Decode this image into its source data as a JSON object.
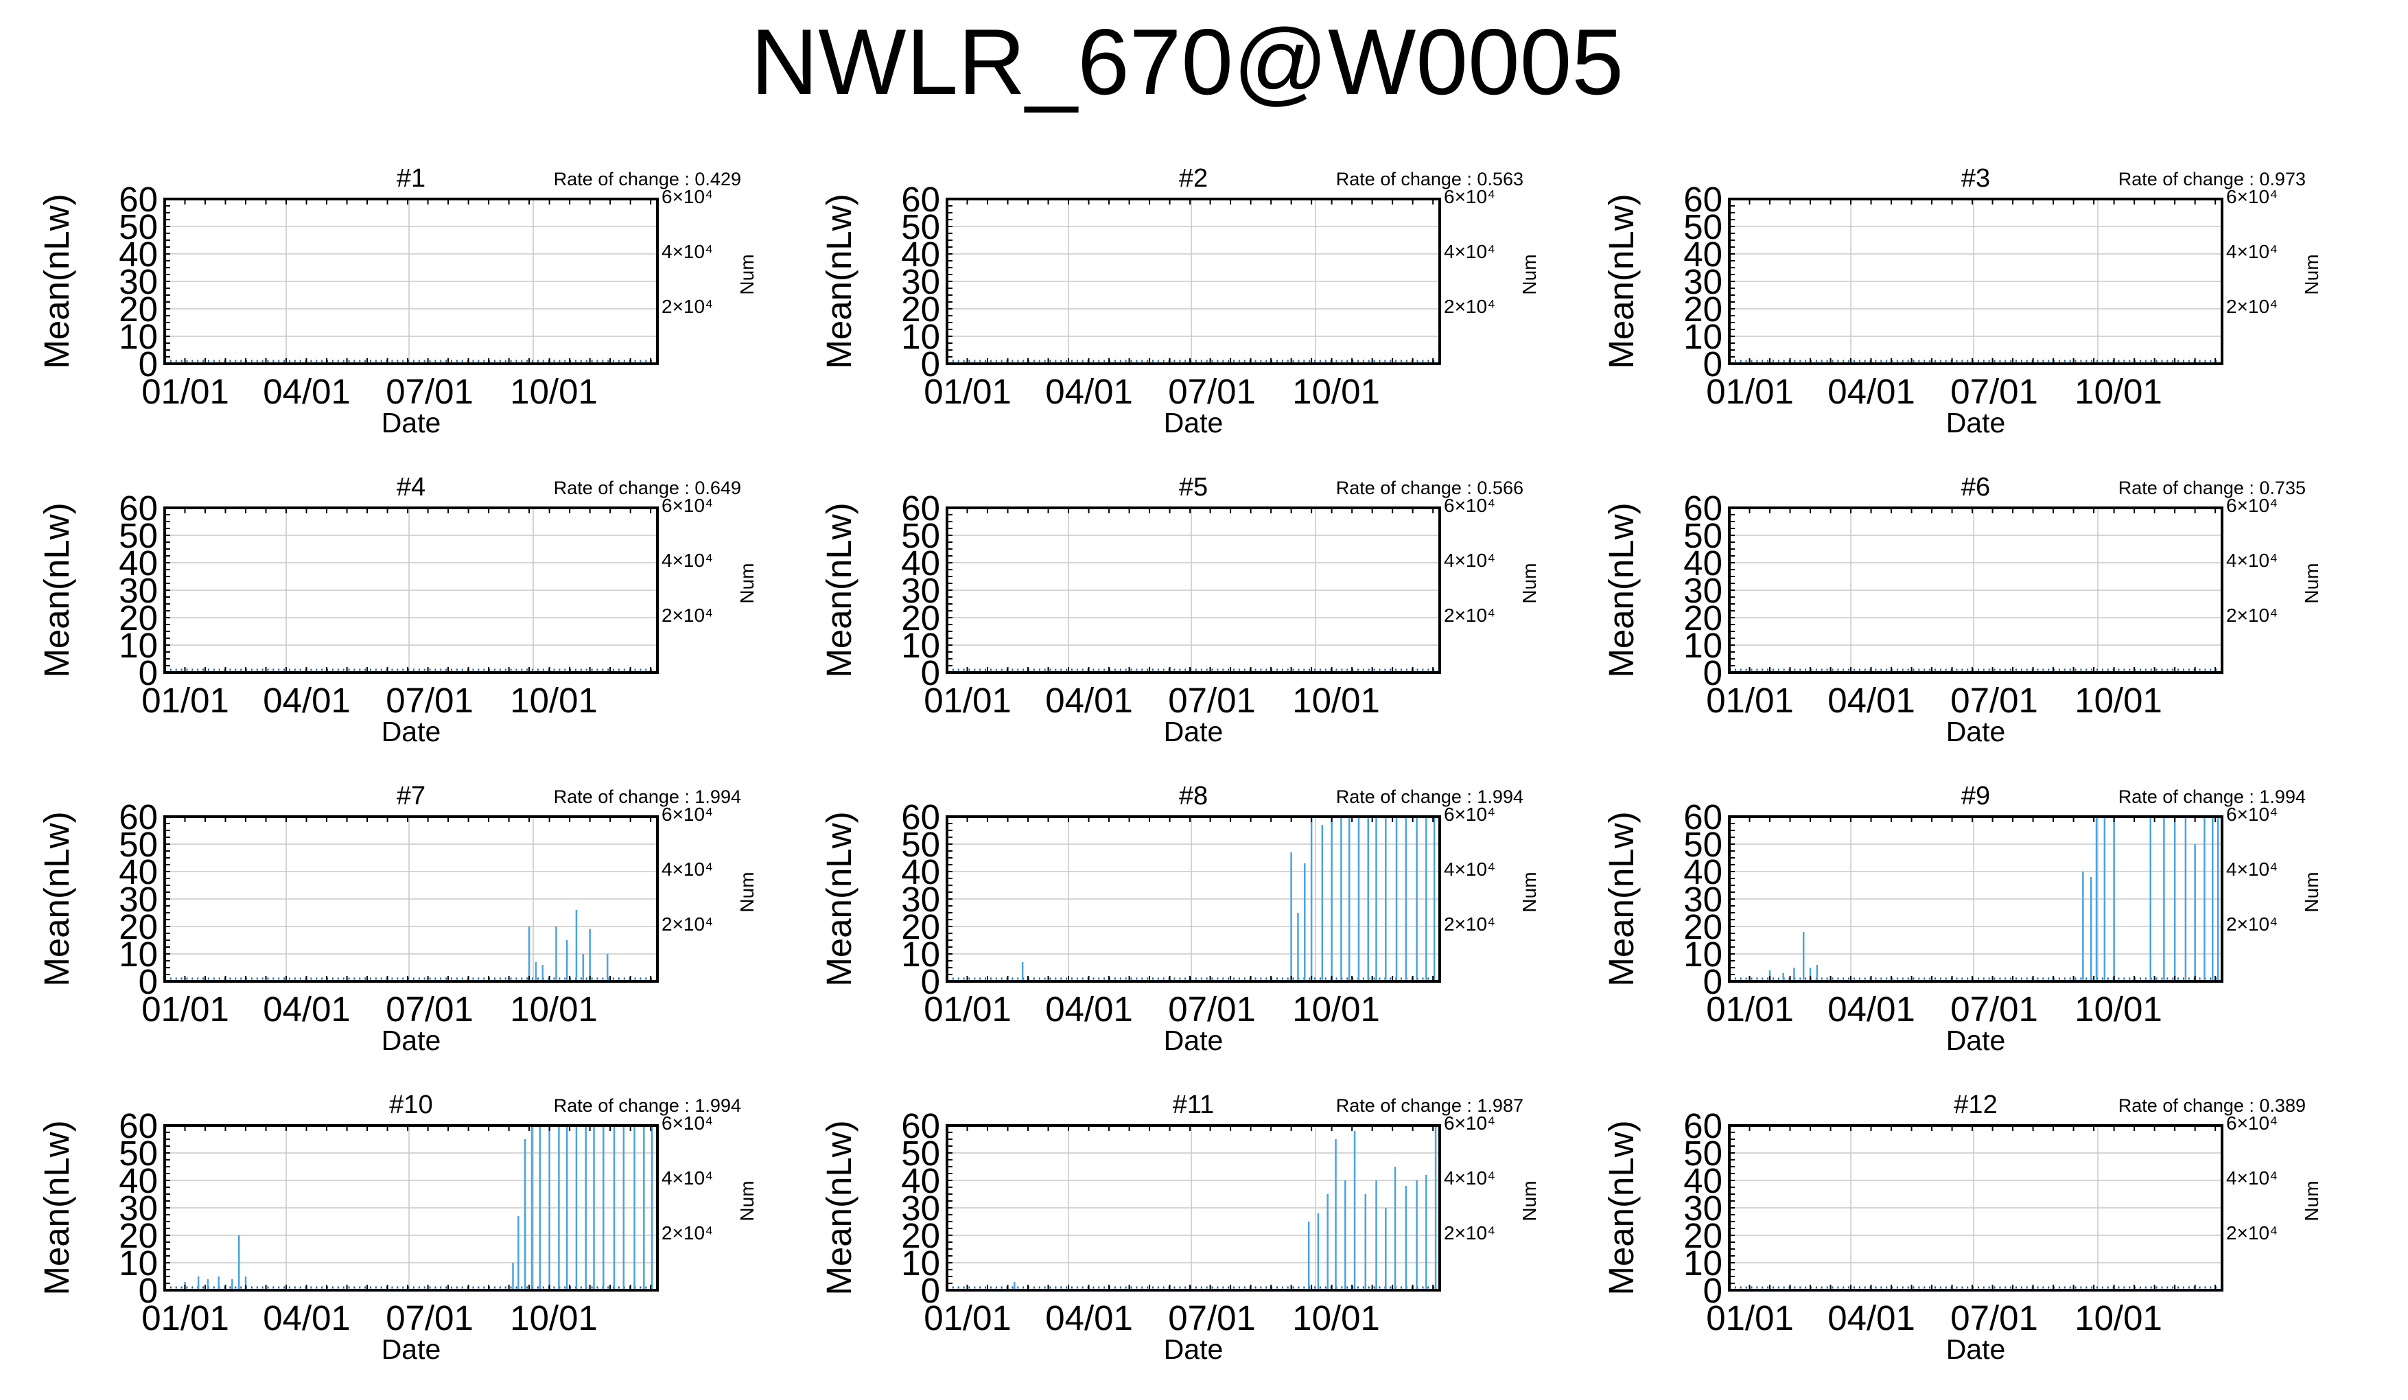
{
  "title": "NWLR_670@W0005",
  "chart_data": [
    {
      "type": "line",
      "title": "#1",
      "annotation": "Rate of change : 0.429",
      "xlabel": "Date",
      "ylabel": "Mean(nLw)",
      "y2label": "Num",
      "xticks": [
        "01/01",
        "04/01",
        "07/01",
        "10/01"
      ],
      "yticks": [
        "0",
        "10",
        "20",
        "30",
        "40",
        "50",
        "60"
      ],
      "y2ticks": [
        "6×10⁴",
        "4×10⁴",
        "2×10⁴"
      ],
      "ylim": [
        0,
        60
      ],
      "y2lim": [
        0,
        60000
      ],
      "xlim_days": [
        0,
        365
      ],
      "grid": true,
      "series": [
        {
          "values": []
        }
      ]
    },
    {
      "type": "line",
      "title": "#2",
      "annotation": "Rate of change : 0.563",
      "xlabel": "Date",
      "ylabel": "Mean(nLw)",
      "y2label": "Num",
      "xticks": [
        "01/01",
        "04/01",
        "07/01",
        "10/01"
      ],
      "yticks": [
        "0",
        "10",
        "20",
        "30",
        "40",
        "50",
        "60"
      ],
      "y2ticks": [
        "6×10⁴",
        "4×10⁴",
        "2×10⁴"
      ],
      "ylim": [
        0,
        60
      ],
      "y2lim": [
        0,
        60000
      ],
      "xlim_days": [
        0,
        365
      ],
      "grid": true,
      "series": [
        {
          "values": []
        }
      ]
    },
    {
      "type": "line",
      "title": "#3",
      "annotation": "Rate of change : 0.973",
      "xlabel": "Date",
      "ylabel": "Mean(nLw)",
      "y2label": "Num",
      "xticks": [
        "01/01",
        "04/01",
        "07/01",
        "10/01"
      ],
      "yticks": [
        "0",
        "10",
        "20",
        "30",
        "40",
        "50",
        "60"
      ],
      "y2ticks": [
        "6×10⁴",
        "4×10⁴",
        "2×10⁴"
      ],
      "ylim": [
        0,
        60
      ],
      "y2lim": [
        0,
        60000
      ],
      "xlim_days": [
        0,
        365
      ],
      "grid": true,
      "series": [
        {
          "values": []
        }
      ]
    },
    {
      "type": "line",
      "title": "#4",
      "annotation": "Rate of change : 0.649",
      "xlabel": "Date",
      "ylabel": "Mean(nLw)",
      "y2label": "Num",
      "xticks": [
        "01/01",
        "04/01",
        "07/01",
        "10/01"
      ],
      "yticks": [
        "0",
        "10",
        "20",
        "30",
        "40",
        "50",
        "60"
      ],
      "y2ticks": [
        "6×10⁴",
        "4×10⁴",
        "2×10⁴"
      ],
      "ylim": [
        0,
        60
      ],
      "y2lim": [
        0,
        60000
      ],
      "xlim_days": [
        0,
        365
      ],
      "grid": true,
      "series": [
        {
          "values": []
        }
      ]
    },
    {
      "type": "line",
      "title": "#5",
      "annotation": "Rate of change : 0.566",
      "xlabel": "Date",
      "ylabel": "Mean(nLw)",
      "y2label": "Num",
      "xticks": [
        "01/01",
        "04/01",
        "07/01",
        "10/01"
      ],
      "yticks": [
        "0",
        "10",
        "20",
        "30",
        "40",
        "50",
        "60"
      ],
      "y2ticks": [
        "6×10⁴",
        "4×10⁴",
        "2×10⁴"
      ],
      "ylim": [
        0,
        60
      ],
      "y2lim": [
        0,
        60000
      ],
      "xlim_days": [
        0,
        365
      ],
      "grid": true,
      "series": [
        {
          "values": []
        }
      ]
    },
    {
      "type": "line",
      "title": "#6",
      "annotation": "Rate of change : 0.735",
      "xlabel": "Date",
      "ylabel": "Mean(nLw)",
      "y2label": "Num",
      "xticks": [
        "01/01",
        "04/01",
        "07/01",
        "10/01"
      ],
      "yticks": [
        "0",
        "10",
        "20",
        "30",
        "40",
        "50",
        "60"
      ],
      "y2ticks": [
        "6×10⁴",
        "4×10⁴",
        "2×10⁴"
      ],
      "ylim": [
        0,
        60
      ],
      "y2lim": [
        0,
        60000
      ],
      "xlim_days": [
        0,
        365
      ],
      "grid": true,
      "series": [
        {
          "values": []
        }
      ]
    },
    {
      "type": "line",
      "title": "#7",
      "annotation": "Rate of change : 1.994",
      "xlabel": "Date",
      "ylabel": "Mean(nLw)",
      "y2label": "Num",
      "xticks": [
        "01/01",
        "04/01",
        "07/01",
        "10/01"
      ],
      "yticks": [
        "0",
        "10",
        "20",
        "30",
        "40",
        "50",
        "60"
      ],
      "y2ticks": [
        "6×10⁴",
        "4×10⁴",
        "2×10⁴"
      ],
      "ylim": [
        0,
        60
      ],
      "y2lim": [
        0,
        60000
      ],
      "xlim_days": [
        0,
        365
      ],
      "grid": true,
      "series": [
        {
          "values": [
            [
              270,
              20
            ],
            [
              275,
              7
            ],
            [
              280,
              6
            ],
            [
              290,
              20
            ],
            [
              298,
              15
            ],
            [
              305,
              26
            ],
            [
              310,
              10
            ],
            [
              315,
              19
            ],
            [
              328,
              10
            ]
          ]
        }
      ]
    },
    {
      "type": "line",
      "title": "#8",
      "annotation": "Rate of change : 1.994",
      "xlabel": "Date",
      "ylabel": "Mean(nLw)",
      "y2label": "Num",
      "xticks": [
        "01/01",
        "04/01",
        "07/01",
        "10/01"
      ],
      "yticks": [
        "0",
        "10",
        "20",
        "30",
        "40",
        "50",
        "60"
      ],
      "y2ticks": [
        "6×10⁴",
        "4×10⁴",
        "2×10⁴"
      ],
      "ylim": [
        0,
        60
      ],
      "y2lim": [
        0,
        60000
      ],
      "xlim_days": [
        0,
        365
      ],
      "grid": true,
      "series": [
        {
          "values": [
            [
              56,
              7
            ],
            [
              255,
              47
            ],
            [
              260,
              25
            ],
            [
              265,
              43
            ],
            [
              270,
              60
            ],
            [
              278,
              57
            ],
            [
              285,
              60
            ],
            [
              292,
              60
            ],
            [
              298,
              60
            ],
            [
              305,
              60
            ],
            [
              312,
              60
            ],
            [
              318,
              60
            ],
            [
              325,
              60
            ],
            [
              333,
              60
            ],
            [
              340,
              60
            ],
            [
              348,
              60
            ],
            [
              355,
              60
            ],
            [
              361,
              60
            ]
          ]
        }
      ]
    },
    {
      "type": "line",
      "title": "#9",
      "annotation": "Rate of change : 1.994",
      "xlabel": "Date",
      "ylabel": "Mean(nLw)",
      "y2label": "Num",
      "xticks": [
        "01/01",
        "04/01",
        "07/01",
        "10/01"
      ],
      "yticks": [
        "0",
        "10",
        "20",
        "30",
        "40",
        "50",
        "60"
      ],
      "y2ticks": [
        "6×10⁴",
        "4×10⁴",
        "2×10⁴"
      ],
      "ylim": [
        0,
        60
      ],
      "y2lim": [
        0,
        60000
      ],
      "xlim_days": [
        0,
        365
      ],
      "grid": true,
      "series": [
        {
          "values": [
            [
              30,
              4
            ],
            [
              40,
              3
            ],
            [
              48,
              5
            ],
            [
              55,
              18
            ],
            [
              60,
              5
            ],
            [
              65,
              6
            ],
            [
              262,
              40
            ],
            [
              268,
              38
            ],
            [
              272,
              60
            ],
            [
              278,
              60
            ],
            [
              285,
              60
            ],
            [
              312,
              60
            ],
            [
              322,
              60
            ],
            [
              330,
              60
            ],
            [
              338,
              60
            ],
            [
              345,
              50
            ],
            [
              352,
              60
            ],
            [
              358,
              60
            ],
            [
              362,
              60
            ]
          ]
        }
      ]
    },
    {
      "type": "line",
      "title": "#10",
      "annotation": "Rate of change : 1.994",
      "xlabel": "Date",
      "ylabel": "Mean(nLw)",
      "y2label": "Num",
      "xticks": [
        "01/01",
        "04/01",
        "07/01",
        "10/01"
      ],
      "yticks": [
        "0",
        "10",
        "20",
        "30",
        "40",
        "50",
        "60"
      ],
      "y2ticks": [
        "6×10⁴",
        "4×10⁴",
        "2×10⁴"
      ],
      "ylim": [
        0,
        60
      ],
      "y2lim": [
        0,
        60000
      ],
      "xlim_days": [
        0,
        365
      ],
      "grid": true,
      "series": [
        {
          "values": [
            [
              15,
              3
            ],
            [
              25,
              5
            ],
            [
              32,
              4
            ],
            [
              40,
              5
            ],
            [
              50,
              4
            ],
            [
              55,
              20
            ],
            [
              60,
              5
            ],
            [
              258,
              10
            ],
            [
              262,
              27
            ],
            [
              267,
              55
            ],
            [
              272,
              60
            ],
            [
              278,
              60
            ],
            [
              285,
              60
            ],
            [
              292,
              60
            ],
            [
              298,
              60
            ],
            [
              305,
              60
            ],
            [
              312,
              60
            ],
            [
              318,
              60
            ],
            [
              325,
              60
            ],
            [
              333,
              60
            ],
            [
              340,
              60
            ],
            [
              348,
              60
            ],
            [
              355,
              60
            ],
            [
              361,
              60
            ]
          ]
        }
      ]
    },
    {
      "type": "line",
      "title": "#11",
      "annotation": "Rate of change : 1.987",
      "xlabel": "Date",
      "ylabel": "Mean(nLw)",
      "y2label": "Num",
      "xticks": [
        "01/01",
        "04/01",
        "07/01",
        "10/01"
      ],
      "yticks": [
        "0",
        "10",
        "20",
        "30",
        "40",
        "50",
        "60"
      ],
      "y2ticks": [
        "6×10⁴",
        "4×10⁴",
        "2×10⁴"
      ],
      "ylim": [
        0,
        60
      ],
      "y2lim": [
        0,
        60000
      ],
      "xlim_days": [
        0,
        365
      ],
      "grid": true,
      "series": [
        {
          "values": [
            [
              50,
              3
            ],
            [
              268,
              25
            ],
            [
              275,
              28
            ],
            [
              282,
              35
            ],
            [
              288,
              55
            ],
            [
              295,
              40
            ],
            [
              302,
              58
            ],
            [
              310,
              35
            ],
            [
              318,
              40
            ],
            [
              325,
              30
            ],
            [
              332,
              45
            ],
            [
              340,
              38
            ],
            [
              348,
              40
            ],
            [
              355,
              42
            ],
            [
              362,
              60
            ]
          ]
        }
      ]
    },
    {
      "type": "line",
      "title": "#12",
      "annotation": "Rate of change : 0.389",
      "xlabel": "Date",
      "ylabel": "Mean(nLw)",
      "y2label": "Num",
      "xticks": [
        "01/01",
        "04/01",
        "07/01",
        "10/01"
      ],
      "yticks": [
        "0",
        "10",
        "20",
        "30",
        "40",
        "50",
        "60"
      ],
      "y2ticks": [
        "6×10⁴",
        "4×10⁴",
        "2×10⁴"
      ],
      "ylim": [
        0,
        60
      ],
      "y2lim": [
        0,
        60000
      ],
      "xlim_days": [
        0,
        365
      ],
      "grid": true,
      "series": [
        {
          "values": []
        }
      ]
    }
  ]
}
